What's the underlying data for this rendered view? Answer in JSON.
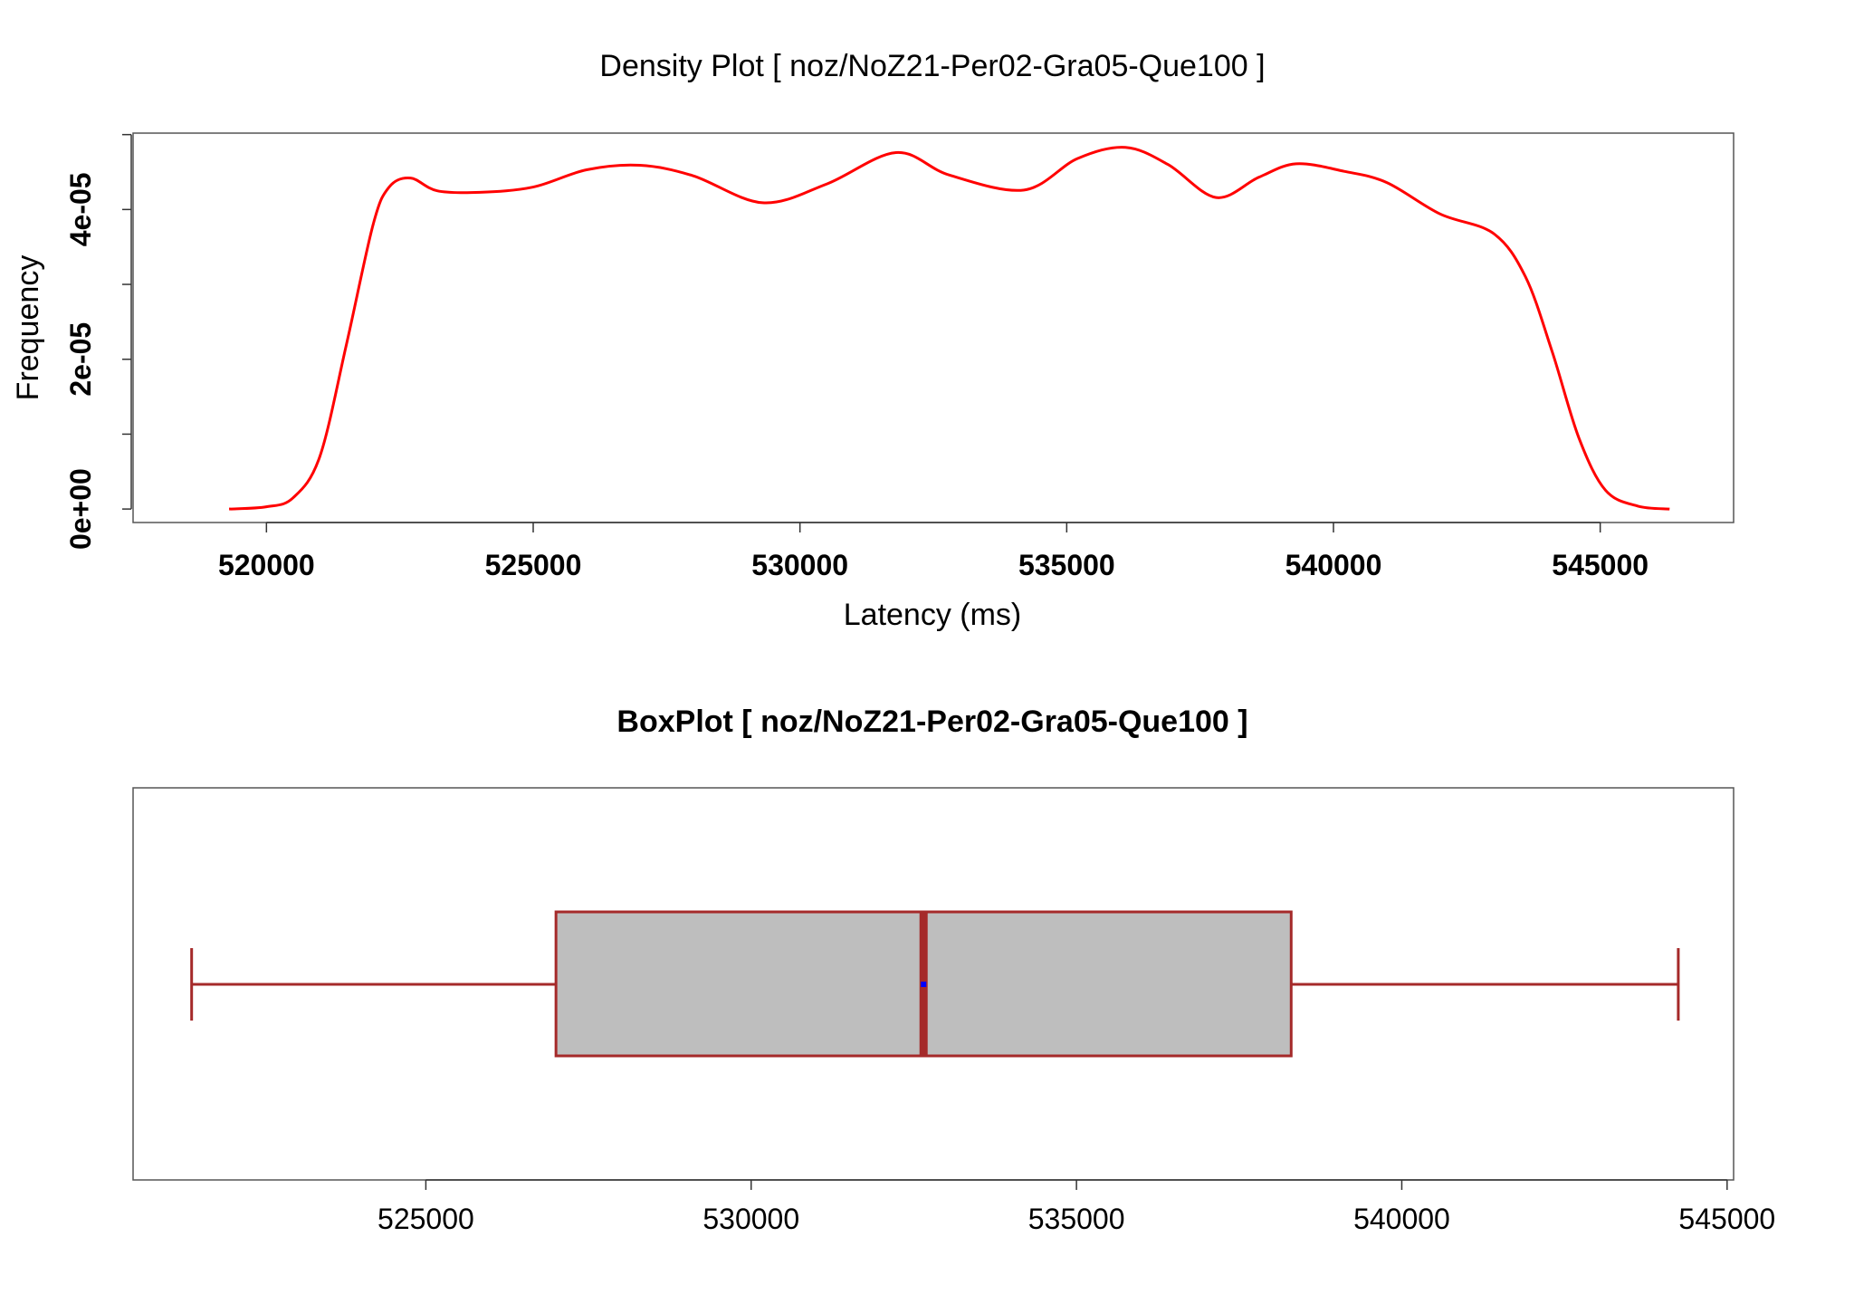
{
  "chart_data": [
    {
      "type": "line",
      "title": "Density Plot [ noz/NoZ21-Per02-Gra05-Que100 ]",
      "xlabel": "Latency (ms)",
      "ylabel": "Frequency",
      "xlim": [
        517500,
        547500
      ],
      "ylim": [
        -1.8e-06,
        5.02e-05
      ],
      "x_ticks": [
        520000,
        525000,
        530000,
        535000,
        540000,
        545000
      ],
      "x_tick_labels": [
        "520000",
        "525000",
        "530000",
        "535000",
        "540000",
        "545000"
      ],
      "y_ticks": [
        0,
        1e-05,
        2e-05,
        3e-05,
        4e-05,
        5e-05
      ],
      "y_tick_labels": [
        "0e+00",
        "",
        "2e-05",
        "",
        "4e-05",
        ""
      ],
      "line_color": "#ff0000",
      "grid": false,
      "series": [
        {
          "x": [
            519300,
            520000,
            520500,
            521000,
            521500,
            522000,
            522300,
            522700,
            523200,
            524000,
            525000,
            526000,
            527000,
            528000,
            529300,
            530500,
            531800,
            532800,
            534200,
            535200,
            536100,
            536900,
            537800,
            538600,
            539300,
            540200,
            541000,
            542000,
            543000,
            543600,
            544100,
            544600,
            545100,
            545700,
            546300
          ],
          "y": [
            0,
            3e-07,
            1.5e-06,
            7e-06,
            2.2e-05,
            3.8e-05,
            4.3e-05,
            4.42e-05,
            4.25e-05,
            4.23e-05,
            4.3e-05,
            4.53e-05,
            4.59e-05,
            4.45e-05,
            4.09e-05,
            4.34e-05,
            4.76e-05,
            4.46e-05,
            4.26e-05,
            4.68e-05,
            4.83e-05,
            4.6e-05,
            4.16e-05,
            4.43e-05,
            4.61e-05,
            4.51e-05,
            4.36e-05,
            3.94e-05,
            3.68e-05,
            3.1e-05,
            2.1e-05,
            9.5e-06,
            2.5e-06,
            4e-07,
            0
          ]
        }
      ]
    },
    {
      "type": "box",
      "title": "BoxPlot [ noz/NoZ21-Per02-Gra05-Que100 ]",
      "xlim": [
        520500,
        545100
      ],
      "x_ticks": [
        525000,
        530000,
        535000,
        540000,
        545000
      ],
      "x_tick_labels": [
        "525000",
        "530000",
        "535000",
        "540000",
        "545000"
      ],
      "stats": {
        "whisker_low": 521400,
        "q1": 527000,
        "median": 532650,
        "mean": 532650,
        "q3": 538300,
        "whisker_high": 544250
      },
      "box_fill": "#bebebe",
      "box_stroke": "#a52a2a",
      "mean_color": "#0000ff"
    }
  ]
}
